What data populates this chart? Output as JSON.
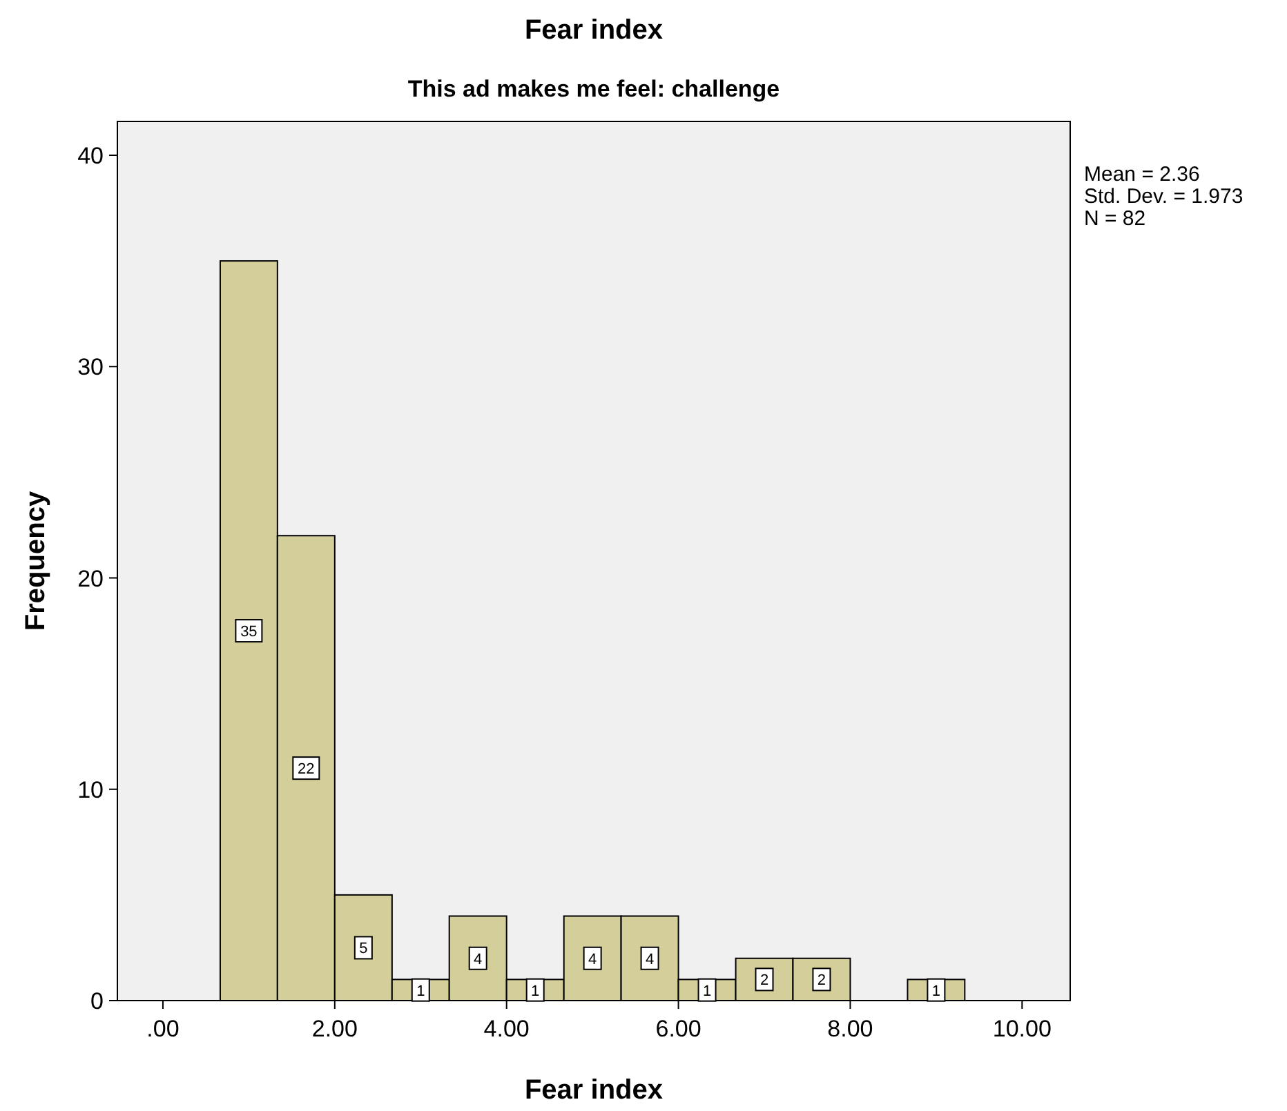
{
  "chart_data": {
    "type": "histogram",
    "title": "Fear index",
    "subtitle": "This ad makes me feel: challenge",
    "xlabel": "Fear index",
    "ylabel": "Frequency",
    "bins": [
      0.667,
      1.333,
      2,
      2.667,
      3.333,
      4,
      4.667,
      5.333,
      6,
      6.667,
      7.333,
      8,
      8.667,
      9.333
    ],
    "values": [
      35,
      22,
      5,
      1,
      4,
      1,
      4,
      4,
      1,
      2,
      2,
      0,
      1
    ],
    "value_labels": [
      "35",
      "22",
      "5",
      "1",
      "4",
      "1",
      "4",
      "4",
      "1",
      "2",
      "2",
      null,
      "1"
    ],
    "color": "#d3ce9a",
    "xlim": [
      -0.53,
      10.56
    ],
    "ylim": [
      0,
      41.6
    ],
    "xticks": [
      {
        "value": 0,
        "label": ".00"
      },
      {
        "value": 2,
        "label": "2.00"
      },
      {
        "value": 4,
        "label": "4.00"
      },
      {
        "value": 6,
        "label": "6.00"
      },
      {
        "value": 8,
        "label": "8.00"
      },
      {
        "value": 10,
        "label": "10.00"
      }
    ],
    "yticks": [
      0,
      10,
      20,
      30,
      40
    ],
    "annotations": [
      "Mean = 2.36",
      "Std. Dev. = 1.973",
      "N = 82"
    ]
  }
}
